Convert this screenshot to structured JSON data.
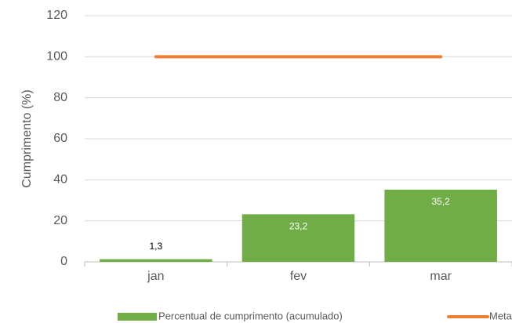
{
  "chart_data": {
    "type": "bar",
    "y_axis_label": "Cumprimento (%)",
    "categories": [
      "jan",
      "fev",
      "mar"
    ],
    "series": [
      {
        "name": "Percentual de cumprimento (acumulado)",
        "type": "bar",
        "color": "#70ad47",
        "values": [
          1.3,
          23.2,
          35.2
        ],
        "value_labels": [
          "1,3",
          "23,2",
          "35,2"
        ]
      },
      {
        "name": "Meta",
        "type": "line",
        "color": "#ed7d31",
        "values": [
          100,
          100,
          100
        ]
      }
    ],
    "ylim": [
      0,
      120
    ],
    "yticks": [
      0,
      20,
      40,
      60,
      80,
      100,
      120
    ],
    "grid": true,
    "legend": "bottom"
  }
}
